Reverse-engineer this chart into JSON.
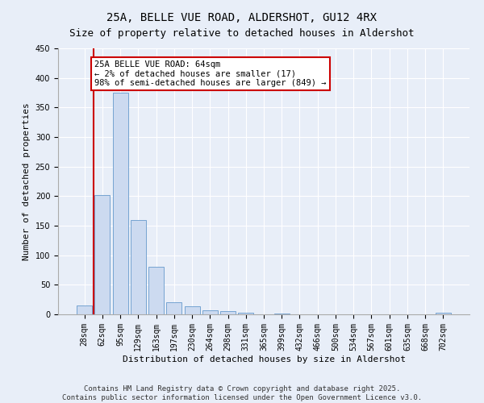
{
  "title": "25A, BELLE VUE ROAD, ALDERSHOT, GU12 4RX",
  "subtitle": "Size of property relative to detached houses in Aldershot",
  "xlabel": "Distribution of detached houses by size in Aldershot",
  "ylabel": "Number of detached properties",
  "categories": [
    "28sqm",
    "62sqm",
    "95sqm",
    "129sqm",
    "163sqm",
    "197sqm",
    "230sqm",
    "264sqm",
    "298sqm",
    "331sqm",
    "365sqm",
    "399sqm",
    "432sqm",
    "466sqm",
    "500sqm",
    "534sqm",
    "567sqm",
    "601sqm",
    "635sqm",
    "668sqm",
    "702sqm"
  ],
  "values": [
    15,
    202,
    375,
    160,
    80,
    20,
    13,
    7,
    5,
    3,
    0,
    2,
    0,
    0,
    0,
    0,
    0,
    0,
    0,
    0,
    3
  ],
  "bar_color": "#ccdaf0",
  "bar_edge_color": "#6699cc",
  "vline_color": "#cc0000",
  "annotation_text": "25A BELLE VUE ROAD: 64sqm\n← 2% of detached houses are smaller (17)\n98% of semi-detached houses are larger (849) →",
  "annotation_box_color": "#ffffff",
  "annotation_box_edge_color": "#cc0000",
  "ylim": [
    0,
    450
  ],
  "yticks": [
    0,
    50,
    100,
    150,
    200,
    250,
    300,
    350,
    400,
    450
  ],
  "background_color": "#e8eef8",
  "plot_bg_color": "#e8eef8",
  "footer": "Contains HM Land Registry data © Crown copyright and database right 2025.\nContains public sector information licensed under the Open Government Licence v3.0.",
  "title_fontsize": 10,
  "subtitle_fontsize": 9,
  "xlabel_fontsize": 8,
  "ylabel_fontsize": 8,
  "tick_fontsize": 7,
  "annotation_fontsize": 7.5,
  "footer_fontsize": 6.5
}
